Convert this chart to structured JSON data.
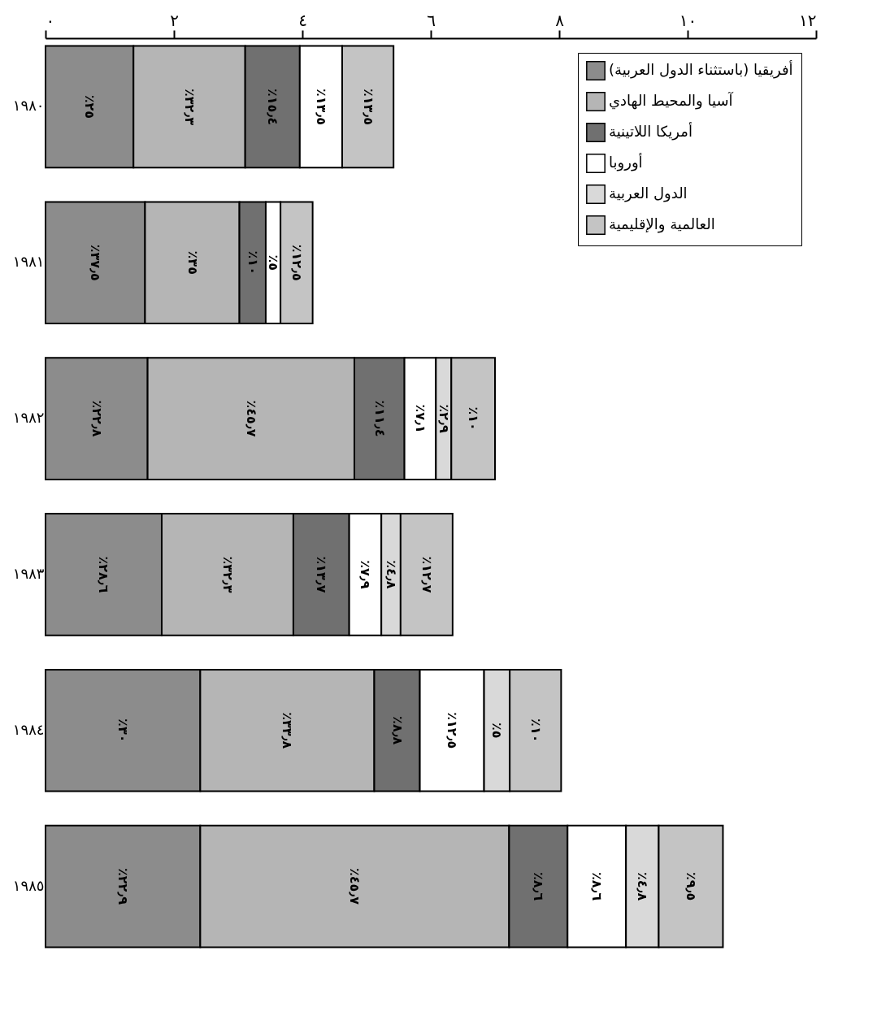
{
  "chart_data": {
    "type": "bar",
    "orientation": "horizontal",
    "stacked": true,
    "categories": [
      "١٩٨٠",
      "١٩٨١",
      "١٩٨٢",
      "١٩٨٣",
      "١٩٨٤",
      "١٩٨٥"
    ],
    "xlim": [
      0,
      12
    ],
    "xticks": [
      {
        "value": 0,
        "label": "٠"
      },
      {
        "value": 2,
        "label": "٢"
      },
      {
        "value": 4,
        "label": "٤"
      },
      {
        "value": 6,
        "label": "٦"
      },
      {
        "value": 8,
        "label": "٨"
      },
      {
        "value": 10,
        "label": "١٠"
      },
      {
        "value": 12,
        "label": "١٢"
      }
    ],
    "legend": "top right",
    "series": [
      {
        "name": "أفريقيا (باستثناء الدول العربية)",
        "color": "#8c8c8c",
        "values": [
          1.37,
          1.55,
          1.59,
          1.81,
          2.41,
          2.41
        ]
      },
      {
        "name": "آسيا والمحيط الهادي",
        "color": "#b5b5b5",
        "values": [
          1.74,
          1.47,
          3.22,
          2.05,
          2.71,
          4.81
        ]
      },
      {
        "name": "أمريكا اللاتينية",
        "color": "#707070",
        "values": [
          0.85,
          0.41,
          0.78,
          0.87,
          0.71,
          0.91
        ]
      },
      {
        "name": "أوروبا",
        "color": "#ffffff",
        "values": [
          0.66,
          0.23,
          0.49,
          0.5,
          1.0,
          0.91
        ]
      },
      {
        "name": "الدول العربية",
        "color": "#d9d9d9",
        "values": [
          null,
          null,
          0.24,
          0.3,
          0.4,
          0.51
        ]
      },
      {
        "name": "العالمية والإقليمية",
        "color": "#c4c4c4",
        "values": [
          0.8,
          0.5,
          0.68,
          0.81,
          0.8,
          1.0
        ]
      }
    ],
    "annotations": [
      "٪٢٥",
      "٪٣٢٫٣",
      "٪١٥٫٤",
      "٪١٣٫٥",
      "٪١٣٫٥",
      "٪٣٧٫٥",
      "٪٣٥",
      "٪١٠",
      "٪٥",
      "٪١٢٫٥",
      "٪٢٢٫٨",
      "٪٤٥٫٧",
      "٪١١٫٤",
      "٪٧٫١",
      "٪٢٫٩",
      "٪١٠",
      "٪٢٨٫٦",
      "٪٣٢٫٣",
      "٪١٣٫٧",
      "٪٧٫٩",
      "٪٤٫٨",
      "٪١٢٫٧",
      "٪٣٠",
      "٪٣٣٫٨",
      "٪٨٫٨",
      "٪١٢٫٥",
      "٪٥",
      "٪١٠",
      "٪٢٢٫٩",
      "٪٤٥٫٧",
      "٪٨٫٦",
      "٪٨٫٦",
      "٪٤٫٨",
      "٪٩٫٥"
    ]
  }
}
